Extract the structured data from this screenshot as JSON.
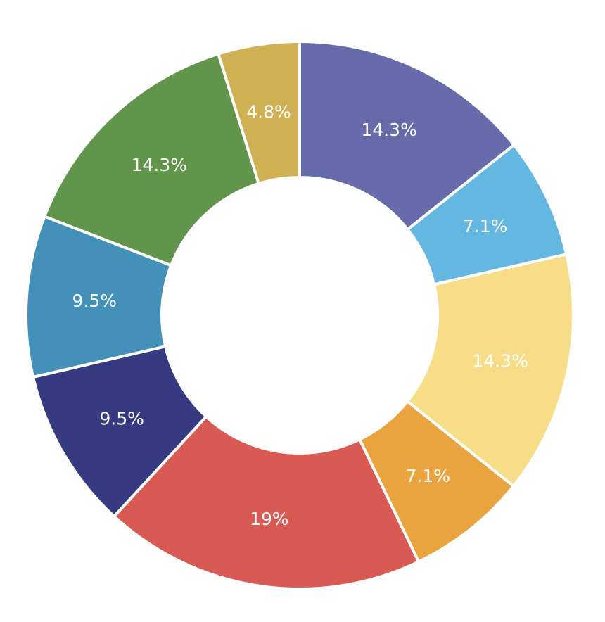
{
  "chart_data": {
    "type": "pie",
    "variant": "donut",
    "title": "",
    "legend": "none",
    "slices": [
      {
        "label": "14.3%",
        "value": 14.3,
        "color": "#676BAB"
      },
      {
        "label": "7.1%",
        "value": 7.1,
        "color": "#63B7E0"
      },
      {
        "label": "14.3%",
        "value": 14.3,
        "color": "#F7DD87"
      },
      {
        "label": "7.1%",
        "value": 7.1,
        "color": "#E9A33F"
      },
      {
        "label": "19%",
        "value": 19.0,
        "color": "#D85A53"
      },
      {
        "label": "9.5%",
        "value": 9.5,
        "color": "#363A80"
      },
      {
        "label": "9.5%",
        "value": 9.5,
        "color": "#4391B8"
      },
      {
        "label": "14.3%",
        "value": 14.3,
        "color": "#62954C"
      },
      {
        "label": "4.8%",
        "value": 4.8,
        "color": "#CFB052"
      }
    ]
  }
}
